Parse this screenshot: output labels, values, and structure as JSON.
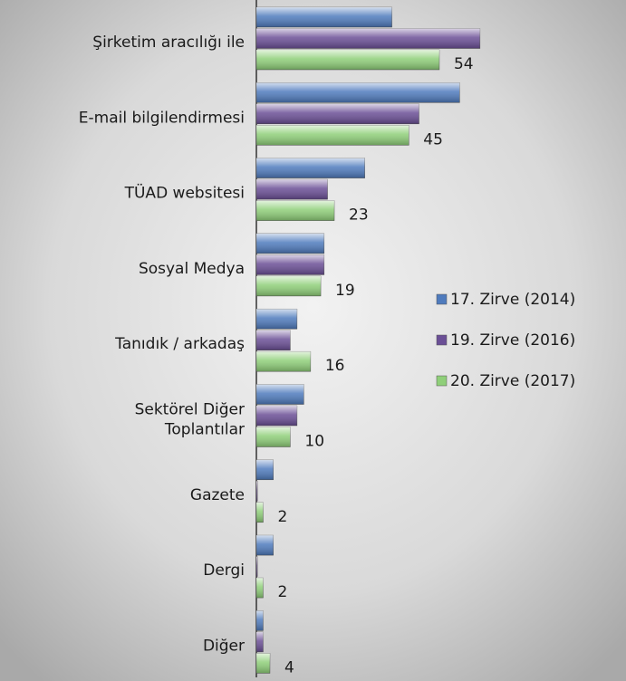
{
  "chart_data": {
    "type": "bar",
    "orientation": "horizontal",
    "categories": [
      "Şirketim aracılığı ile",
      "E-mail bilgilendirmesi",
      "TÜAD websitesi",
      "Sosyal Medya",
      "Tanıdık / arkadaş",
      "Sektörel Diğer\nToplantılar",
      "Gazete",
      "Dergi",
      "Diğer"
    ],
    "series": [
      {
        "name": "17. Zirve (2014)",
        "color": "#4f7bbd",
        "values": [
          40,
          60,
          32,
          20,
          12,
          14,
          5,
          5,
          2
        ]
      },
      {
        "name": "19. Zirve (2016)",
        "color": "#6b4f96",
        "values": [
          66,
          48,
          21,
          20,
          10,
          12,
          0.3,
          0.3,
          2
        ]
      },
      {
        "name": "20. Zirve (2017)",
        "color": "#8fcf79",
        "values": [
          54,
          45,
          23,
          19,
          16,
          10,
          2,
          2,
          4
        ],
        "labels": true
      }
    ],
    "xlim": [
      0,
      70
    ],
    "legend": "right"
  }
}
